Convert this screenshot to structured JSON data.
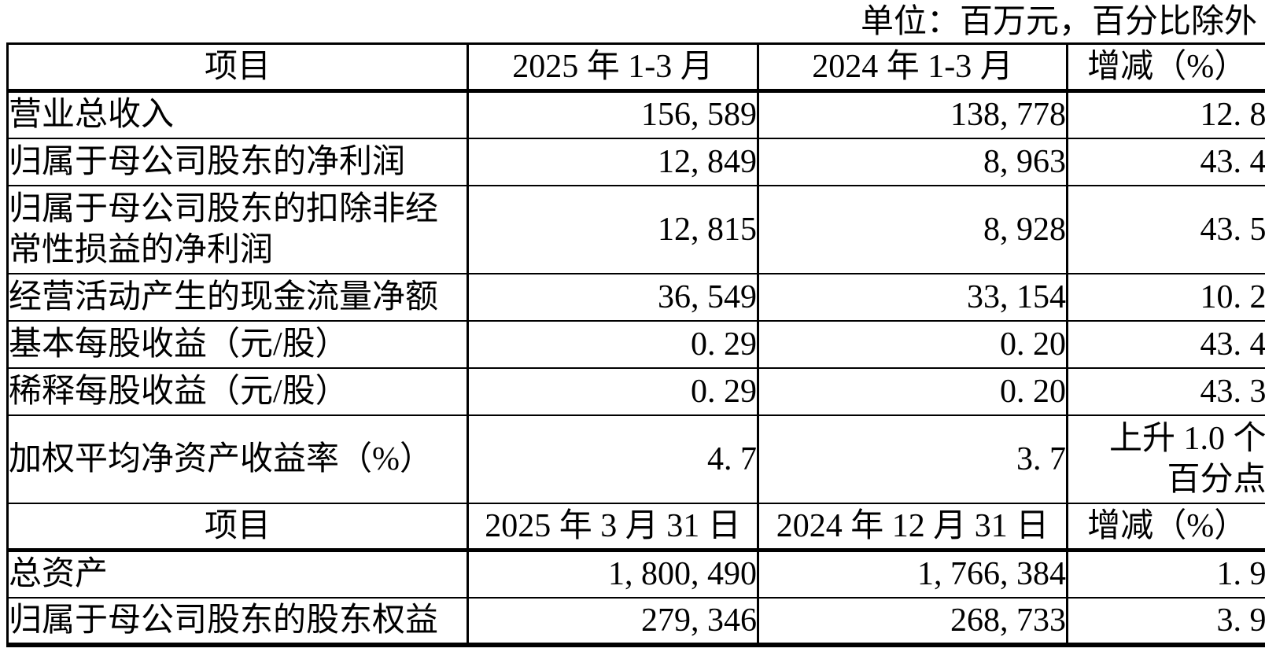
{
  "note": "单位：百万元，百分比除外",
  "table": {
    "sections": [
      {
        "headers": [
          "项目",
          "2025 年 1-3 月",
          "2024 年 1-3 月",
          "增减（%）"
        ],
        "rows": [
          {
            "item": "营业总收入",
            "current": "156, 589",
            "prior": "138, 778",
            "change": "12. 8"
          },
          {
            "item": "归属于母公司股东的净利润",
            "current": "12, 849",
            "prior": "8, 963",
            "change": "43. 4"
          },
          {
            "item": "归属于母公司股东的扣除非经\n常性损益的净利润",
            "current": "12, 815",
            "prior": "8, 928",
            "change": "43. 5"
          },
          {
            "item": "经营活动产生的现金流量净额",
            "current": "36, 549",
            "prior": "33, 154",
            "change": "10. 2"
          },
          {
            "item": "基本每股收益（元/股）",
            "current": "0. 29",
            "prior": "0. 20",
            "change": "43. 4"
          },
          {
            "item": "稀释每股收益（元/股）",
            "current": "0. 29",
            "prior": "0. 20",
            "change": "43. 3"
          },
          {
            "item": "加权平均净资产收益率（%）",
            "current": "4. 7",
            "prior": "3. 7",
            "change": "上升 1.0 个\n百分点"
          }
        ]
      },
      {
        "headers": [
          "项目",
          "2025 年 3 月 31 日",
          "2024 年 12 月 31 日",
          "增减（%）"
        ],
        "rows": [
          {
            "item": "总资产",
            "current": "1, 800, 490",
            "prior": "1, 766, 384",
            "change": "1. 9"
          },
          {
            "item": "归属于母公司股东的股东权益",
            "current": "279, 346",
            "prior": "268, 733",
            "change": "3. 9"
          }
        ]
      }
    ]
  }
}
